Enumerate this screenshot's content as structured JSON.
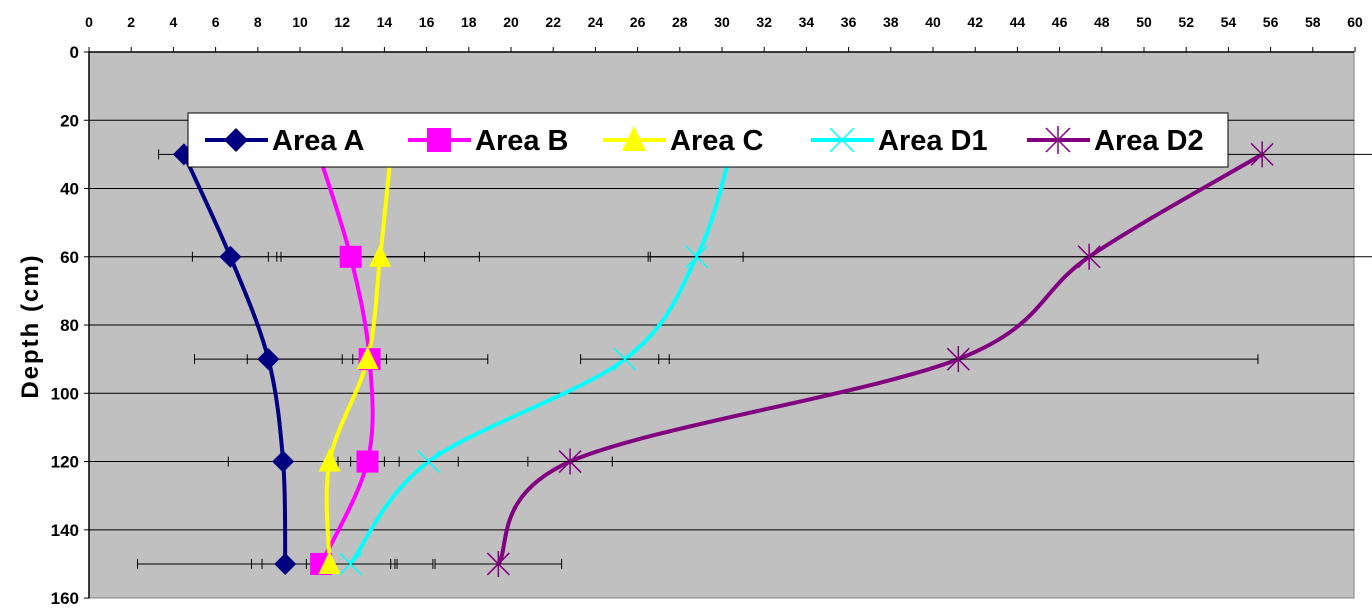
{
  "chart_data": {
    "type": "line",
    "title": "",
    "xlabel": "",
    "ylabel": "Depth (cm)",
    "x_axis_position": "top",
    "y_axis_reversed": true,
    "xlim": [
      0,
      60
    ],
    "ylim": [
      0,
      160
    ],
    "xticks": [
      0,
      2,
      4,
      6,
      8,
      10,
      12,
      14,
      16,
      18,
      20,
      22,
      24,
      26,
      28,
      30,
      32,
      34,
      36,
      38,
      40,
      42,
      44,
      46,
      48,
      50,
      52,
      54,
      56,
      58,
      60
    ],
    "yticks": [
      0,
      20,
      40,
      60,
      80,
      100,
      120,
      140,
      160
    ],
    "grid": "horizontal",
    "plot_background": "#c0c0c0",
    "legend_placement": "top",
    "series": [
      {
        "name": "Area A",
        "color": "#000080",
        "marker": "diamond",
        "points": [
          {
            "x": 4.5,
            "y": 30,
            "err": 1.2
          },
          {
            "x": 6.7,
            "y": 60,
            "err": 1.8
          },
          {
            "x": 8.5,
            "y": 90,
            "err": 3.5
          },
          {
            "x": 9.2,
            "y": 120,
            "err": 2.6
          },
          {
            "x": 9.3,
            "y": 150,
            "err": 7.0
          }
        ]
      },
      {
        "name": "Area B",
        "color": "#ff00ff",
        "marker": "square",
        "points": [
          {
            "x": 10.9,
            "y": 30,
            "err": 0
          },
          {
            "x": 12.4,
            "y": 60,
            "err": 3.5
          },
          {
            "x": 13.3,
            "y": 90,
            "err": 0.8
          },
          {
            "x": 13.2,
            "y": 120,
            "err": 0.8
          },
          {
            "x": 11.0,
            "y": 150,
            "err": 3.3
          }
        ]
      },
      {
        "name": "Area C",
        "color": "#ffff00",
        "marker": "triangle",
        "points": [
          {
            "x": 14.3,
            "y": 30,
            "err": 0
          },
          {
            "x": 13.8,
            "y": 60,
            "err": 4.7
          },
          {
            "x": 13.2,
            "y": 90,
            "err": 5.7
          },
          {
            "x": 11.4,
            "y": 120,
            "err": 0
          },
          {
            "x": 11.4,
            "y": 150,
            "err": 3.2
          }
        ]
      },
      {
        "name": "Area D1",
        "color": "#00ffff",
        "marker": "x",
        "points": [
          {
            "x": 30.4,
            "y": 30,
            "err": 0
          },
          {
            "x": 28.8,
            "y": 60,
            "err": 2.2
          },
          {
            "x": 25.4,
            "y": 90,
            "err": 2.1
          },
          {
            "x": 16.1,
            "y": 120,
            "err": 1.4
          },
          {
            "x": 12.4,
            "y": 150,
            "err": 2.1
          }
        ]
      },
      {
        "name": "Area D2",
        "color": "#800080",
        "marker": "star",
        "points": [
          {
            "x": 55.6,
            "y": 30,
            "err": 8.5
          },
          {
            "x": 47.4,
            "y": 60,
            "err": 20.9
          },
          {
            "x": 41.2,
            "y": 90,
            "err": 14.2
          },
          {
            "x": 22.8,
            "y": 120,
            "err": 2.0
          },
          {
            "x": 19.4,
            "y": 150,
            "err": 3.0
          }
        ]
      }
    ]
  }
}
